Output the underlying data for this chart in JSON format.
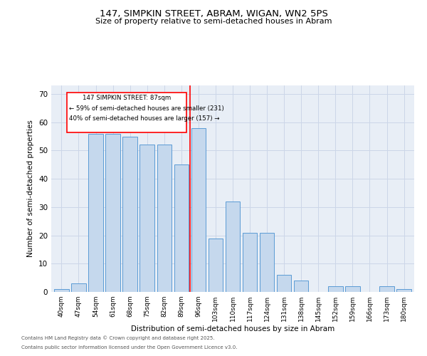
{
  "title": "147, SIMPKIN STREET, ABRAM, WIGAN, WN2 5PS",
  "subtitle": "Size of property relative to semi-detached houses in Abram",
  "xlabel": "Distribution of semi-detached houses by size in Abram",
  "ylabel": "Number of semi-detached properties",
  "categories": [
    "40sqm",
    "47sqm",
    "54sqm",
    "61sqm",
    "68sqm",
    "75sqm",
    "82sqm",
    "89sqm",
    "96sqm",
    "103sqm",
    "110sqm",
    "117sqm",
    "124sqm",
    "131sqm",
    "138sqm",
    "145sqm",
    "152sqm",
    "159sqm",
    "166sqm",
    "173sqm",
    "180sqm"
  ],
  "values": [
    1,
    3,
    56,
    56,
    55,
    52,
    52,
    45,
    58,
    19,
    32,
    21,
    21,
    6,
    4,
    0,
    2,
    2,
    0,
    2,
    1
  ],
  "bar_color": "#c5d8ed",
  "bar_edge_color": "#5b9bd5",
  "property_label": "147 SIMPKIN STREET: 87sqm",
  "pct_smaller": 59,
  "count_smaller": 231,
  "pct_larger": 40,
  "count_larger": 157,
  "vline_x": 7.5,
  "vline_color": "red",
  "ylim": [
    0,
    73
  ],
  "yticks": [
    0,
    10,
    20,
    30,
    40,
    50,
    60,
    70
  ],
  "grid_color": "#ccd6e8",
  "bg_color": "#e8eef6",
  "footnote1": "Contains HM Land Registry data © Crown copyright and database right 2025.",
  "footnote2": "Contains public sector information licensed under the Open Government Licence v3.0."
}
